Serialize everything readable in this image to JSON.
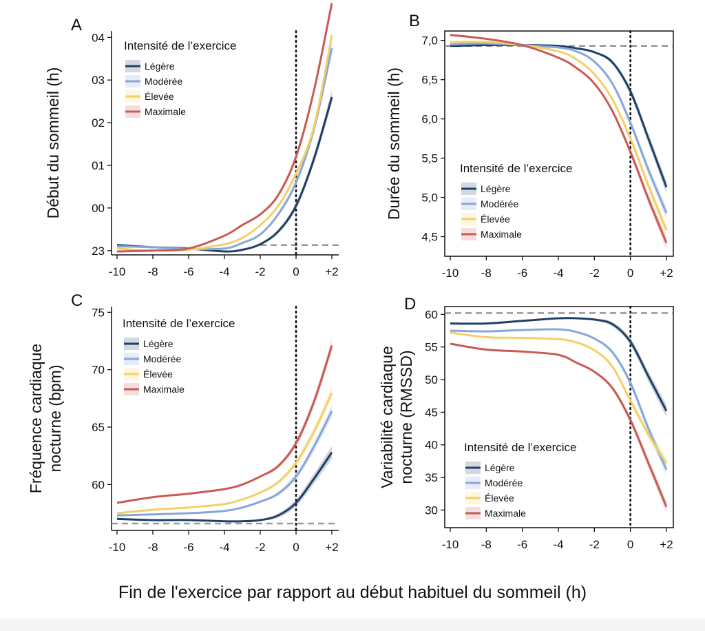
{
  "figure_xlabel": "Fin de l'exercice par rapport au début habituel du sommeil (h)",
  "colors": {
    "Légère": "#1f3f66",
    "Modérée": "#86a7d8",
    "Élevée": "#f3d067",
    "Maximale": "#c95a55",
    "reference": "#999999",
    "vline": "#111111"
  },
  "chart_data": [
    {
      "panel": "A",
      "type": "line",
      "ylabel": "Début du sommeil (h)",
      "legend_title": "Intensité de l’exercice",
      "legend_position": "top-left",
      "x": [
        -10,
        -8,
        -6,
        -4,
        -3,
        -2,
        -1,
        0,
        1,
        2
      ],
      "xticks": [
        "-10",
        "-8",
        "-6",
        "-4",
        "-2",
        "0",
        "+2"
      ],
      "yticks": [
        "23",
        "00",
        "01",
        "02",
        "03",
        "04"
      ],
      "ylim": [
        22.9,
        28.15
      ],
      "reference_y": 23.13,
      "reference_x_start": -2,
      "series": [
        {
          "name": "Légère",
          "values": [
            23.13,
            23.08,
            23.05,
            22.98,
            23.02,
            23.15,
            23.45,
            24.05,
            25.15,
            26.6
          ]
        },
        {
          "name": "Modérée",
          "values": [
            23.1,
            23.08,
            23.04,
            23.05,
            23.18,
            23.38,
            23.85,
            24.6,
            25.85,
            27.75
          ]
        },
        {
          "name": "Élevée",
          "values": [
            23.05,
            23.0,
            23.02,
            23.15,
            23.3,
            23.6,
            24.05,
            24.8,
            25.9,
            28.05
          ]
        },
        {
          "name": "Maximale",
          "values": [
            22.98,
            23.0,
            23.05,
            23.35,
            23.6,
            23.85,
            24.3,
            25.2,
            26.75,
            28.8
          ]
        }
      ]
    },
    {
      "panel": "B",
      "type": "line",
      "ylabel": "Durée du sommeil (h)",
      "legend_title": "Intensité de l’exercice",
      "legend_position": "bottom-left",
      "x": [
        -10,
        -8,
        -6,
        -4,
        -3,
        -2,
        -1,
        0,
        1,
        2
      ],
      "xticks": [
        "-10",
        "-8",
        "-6",
        "-4",
        "-2",
        "0",
        "+2"
      ],
      "yticks": [
        "4,5",
        "5,0",
        "5,5",
        "6,0",
        "6,5",
        "7,0"
      ],
      "ylim": [
        4.25,
        7.12
      ],
      "reference_y": 6.93,
      "series": [
        {
          "name": "Légère",
          "values": [
            6.93,
            6.94,
            6.94,
            6.93,
            6.9,
            6.85,
            6.72,
            6.35,
            5.75,
            5.13
          ]
        },
        {
          "name": "Modérée",
          "values": [
            6.95,
            6.96,
            6.94,
            6.91,
            6.86,
            6.73,
            6.45,
            5.95,
            5.35,
            4.8
          ]
        },
        {
          "name": "Élevée",
          "values": [
            6.98,
            6.98,
            6.94,
            6.86,
            6.76,
            6.57,
            6.25,
            5.75,
            5.15,
            4.58
          ]
        },
        {
          "name": "Maximale",
          "values": [
            7.07,
            7.02,
            6.94,
            6.78,
            6.65,
            6.45,
            6.1,
            5.58,
            4.98,
            4.42
          ]
        }
      ]
    },
    {
      "panel": "C",
      "type": "line",
      "ylabel": "Fréquence cardiaque\nnocturne (bpm)",
      "legend_title": "Intensité de l’exercice",
      "legend_position": "top-left",
      "x": [
        -10,
        -8,
        -6,
        -4,
        -3,
        -2,
        -1,
        0,
        1,
        2
      ],
      "xticks": [
        "-10",
        "-8",
        "-6",
        "-4",
        "-2",
        "0",
        "+2"
      ],
      "yticks": [
        "60",
        "65",
        "70",
        "75"
      ],
      "ylim": [
        56.0,
        75.5
      ],
      "reference_y": 56.6,
      "series": [
        {
          "name": "Légère",
          "values": [
            57.0,
            56.9,
            56.9,
            56.8,
            56.8,
            56.9,
            57.3,
            58.4,
            60.5,
            62.8
          ]
        },
        {
          "name": "Modérée",
          "values": [
            57.3,
            57.4,
            57.5,
            57.7,
            58.0,
            58.5,
            59.2,
            60.7,
            63.3,
            66.4
          ]
        },
        {
          "name": "Élevée",
          "values": [
            57.5,
            57.8,
            58.0,
            58.3,
            58.7,
            59.3,
            60.2,
            61.9,
            64.6,
            68.0
          ]
        },
        {
          "name": "Maximale",
          "values": [
            58.4,
            58.9,
            59.2,
            59.6,
            60.0,
            60.7,
            61.6,
            63.6,
            67.2,
            72.1
          ]
        }
      ]
    },
    {
      "panel": "D",
      "type": "line",
      "ylabel": "Variabilité cardiaque\nnocturne (RMSSD)",
      "legend_title": "Intensité de l’exercice",
      "legend_position": "bottom-left",
      "x": [
        -10,
        -8,
        -6,
        -4,
        -3,
        -2,
        -1,
        0,
        1,
        2
      ],
      "xticks": [
        "-10",
        "-8",
        "-6",
        "-4",
        "-2",
        "0",
        "+2"
      ],
      "yticks": [
        "30",
        "35",
        "40",
        "45",
        "50",
        "55",
        "60"
      ],
      "ylim": [
        27.3,
        61.2
      ],
      "reference_y": 60.2,
      "series": [
        {
          "name": "Légère",
          "values": [
            58.6,
            58.6,
            59.0,
            59.4,
            59.4,
            59.2,
            58.5,
            55.8,
            50.5,
            45.2
          ]
        },
        {
          "name": "Modérée",
          "values": [
            57.5,
            57.4,
            57.6,
            57.7,
            57.3,
            56.3,
            54.2,
            49.5,
            42.5,
            36.2
          ]
        },
        {
          "name": "Élevée",
          "values": [
            57.2,
            56.5,
            56.4,
            56.2,
            55.7,
            54.5,
            52.0,
            46.8,
            41.6,
            37.2
          ]
        },
        {
          "name": "Maximale",
          "values": [
            55.5,
            54.6,
            54.3,
            53.8,
            52.6,
            51.2,
            48.7,
            43.8,
            37.2,
            30.5
          ]
        }
      ]
    }
  ]
}
